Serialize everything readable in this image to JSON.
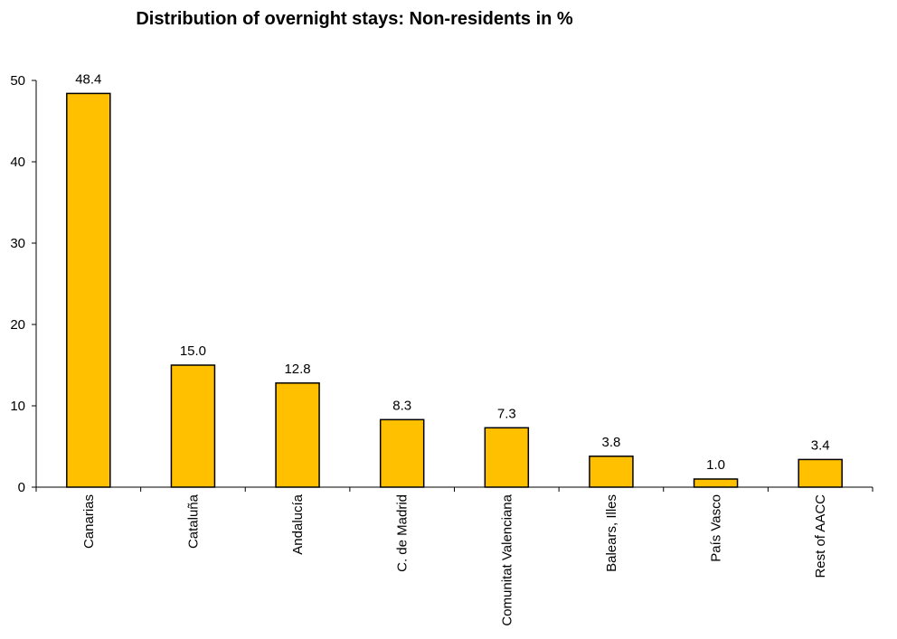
{
  "chart_data": {
    "type": "bar",
    "title": "Distribution of overnight stays: Non-residents in %",
    "categories": [
      "Canarias",
      "Cataluña",
      "Andalucía",
      "C. de Madrid",
      "Comunitat Valenciana",
      "Balears, Illes",
      "País Vasco",
      "Rest of AACC"
    ],
    "values": [
      48.4,
      15.0,
      12.8,
      8.3,
      7.3,
      3.8,
      1.0,
      3.4
    ],
    "value_labels": [
      "48.4",
      "15.0",
      "12.8",
      "8.3",
      "7.3",
      "3.8",
      "1.0",
      "3.4"
    ],
    "y_ticks": [
      "0",
      "10",
      "20",
      "30",
      "40",
      "50"
    ],
    "ylim": [
      0,
      50
    ],
    "xlabel": "",
    "ylabel": "",
    "grid": false,
    "bar_color": "#FFC000",
    "bar_outline": "#000000"
  }
}
